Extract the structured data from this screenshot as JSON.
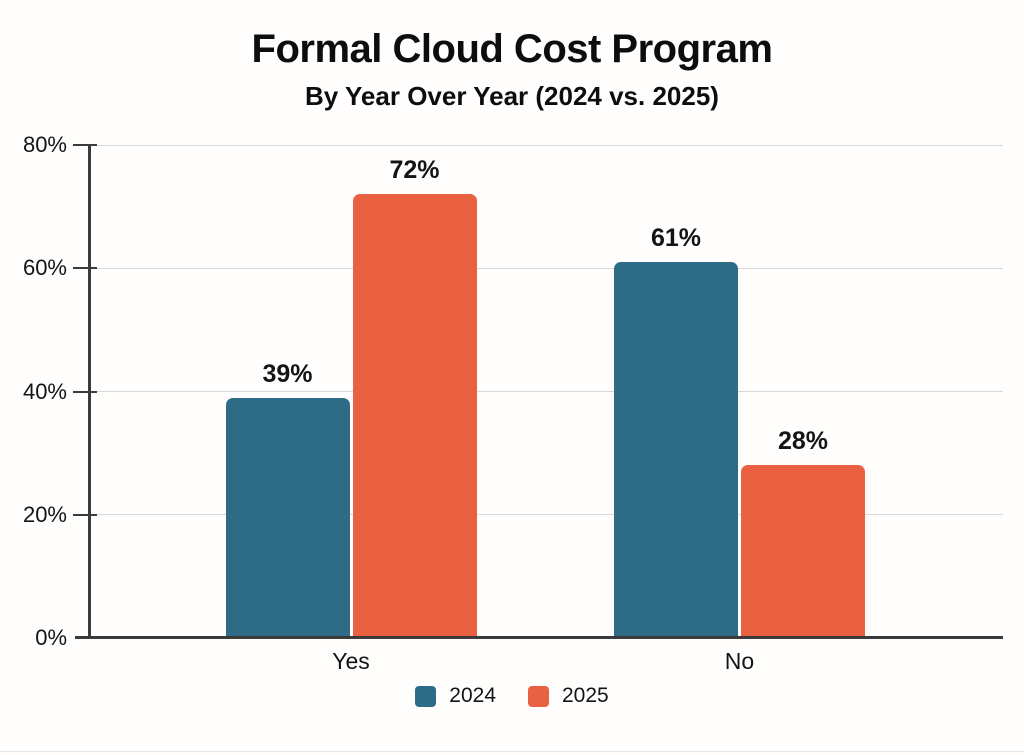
{
  "header": {
    "title": "Formal Cloud Cost Program",
    "subtitle": "By Year Over Year (2024 vs. 2025)"
  },
  "chart_data": {
    "type": "bar",
    "title": "Formal Cloud Cost Program",
    "subtitle": "By Year Over Year (2024 vs. 2025)",
    "categories": [
      "Yes",
      "No"
    ],
    "series": [
      {
        "name": "2024",
        "color": "#2d6b87",
        "values": [
          39,
          61
        ],
        "value_labels": [
          "39%",
          "61%"
        ]
      },
      {
        "name": "2025",
        "color": "#ea6142",
        "values": [
          72,
          28
        ],
        "value_labels": [
          "72%",
          "28%"
        ]
      }
    ],
    "xlabel": "",
    "ylabel": "",
    "ylim": [
      0,
      80
    ],
    "yticks": [
      0,
      20,
      40,
      60,
      80
    ],
    "ytick_labels": [
      "0%",
      "20%",
      "40%",
      "60%",
      "80%"
    ],
    "grid": true,
    "legend_position": "bottom",
    "colors": {
      "axis": "#3b3b3b",
      "grid": "#d9d9d9",
      "text": "#141414",
      "background": "#fffefd"
    }
  }
}
